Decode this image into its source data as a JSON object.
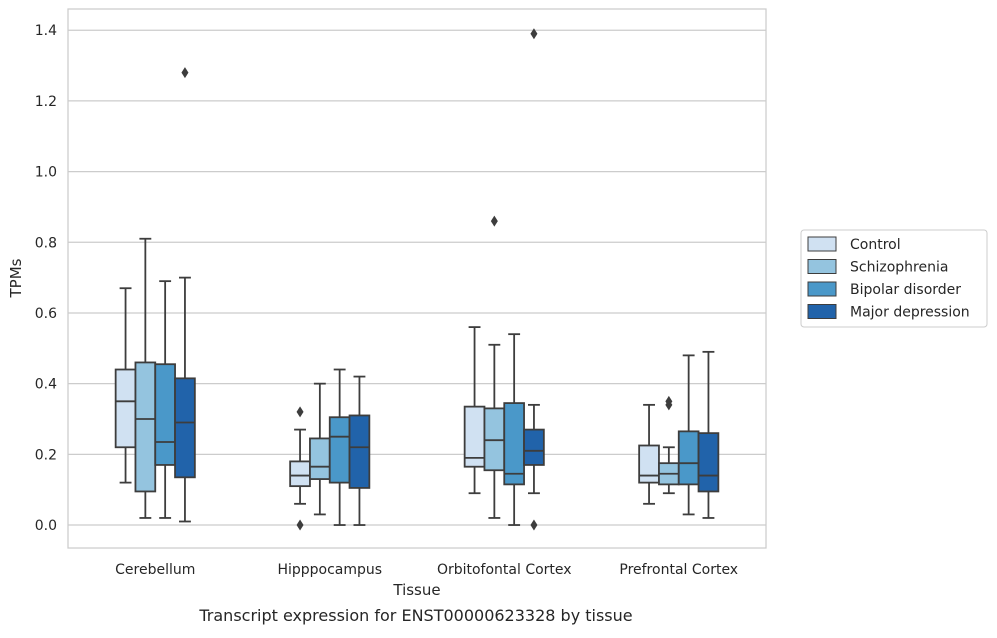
{
  "caption": "Transcript expression for ENST00000623328 by tissue",
  "chart_data": {
    "type": "box",
    "title": "",
    "xlabel": "Tissue",
    "ylabel": "TPMs",
    "ylim": [
      -0.065,
      1.46
    ],
    "yticks": [
      0.0,
      0.2,
      0.4,
      0.6,
      0.8,
      1.0,
      1.2,
      1.4
    ],
    "ytick_labels": [
      "0.0",
      "0.2",
      "0.4",
      "0.6",
      "0.8",
      "1.0",
      "1.2",
      "1.4"
    ],
    "grid": "horizontal",
    "legend_position": "center-right outside",
    "categories": [
      "Cerebellum",
      "Hipppocampus",
      "Orbitofontal Cortex",
      "Prefrontal Cortex"
    ],
    "series": [
      {
        "name": "Control",
        "color": "#d0e1f2",
        "boxes": [
          {
            "whislo": 0.12,
            "q1": 0.22,
            "med": 0.35,
            "q3": 0.44,
            "whishi": 0.67,
            "fliers": []
          },
          {
            "whislo": 0.06,
            "q1": 0.11,
            "med": 0.14,
            "q3": 0.18,
            "whishi": 0.27,
            "fliers": [
              0.0,
              0.32
            ]
          },
          {
            "whislo": 0.09,
            "q1": 0.165,
            "med": 0.19,
            "q3": 0.335,
            "whishi": 0.56,
            "fliers": []
          },
          {
            "whislo": 0.06,
            "q1": 0.12,
            "med": 0.14,
            "q3": 0.225,
            "whishi": 0.34,
            "fliers": []
          }
        ]
      },
      {
        "name": "Schizophrenia",
        "color": "#94c4df",
        "boxes": [
          {
            "whislo": 0.02,
            "q1": 0.095,
            "med": 0.3,
            "q3": 0.46,
            "whishi": 0.81,
            "fliers": []
          },
          {
            "whislo": 0.03,
            "q1": 0.13,
            "med": 0.165,
            "q3": 0.245,
            "whishi": 0.4,
            "fliers": []
          },
          {
            "whislo": 0.02,
            "q1": 0.155,
            "med": 0.24,
            "q3": 0.33,
            "whishi": 0.51,
            "fliers": [
              0.86
            ]
          },
          {
            "whislo": 0.09,
            "q1": 0.115,
            "med": 0.145,
            "q3": 0.175,
            "whishi": 0.22,
            "fliers": [
              0.34,
              0.35
            ]
          }
        ]
      },
      {
        "name": "Bipolar disorder",
        "color": "#4a98c9",
        "boxes": [
          {
            "whislo": 0.02,
            "q1": 0.17,
            "med": 0.235,
            "q3": 0.455,
            "whishi": 0.69,
            "fliers": []
          },
          {
            "whislo": 0.0,
            "q1": 0.12,
            "med": 0.25,
            "q3": 0.305,
            "whishi": 0.44,
            "fliers": []
          },
          {
            "whislo": 0.0,
            "q1": 0.115,
            "med": 0.145,
            "q3": 0.345,
            "whishi": 0.54,
            "fliers": []
          },
          {
            "whislo": 0.03,
            "q1": 0.115,
            "med": 0.175,
            "q3": 0.265,
            "whishi": 0.48,
            "fliers": []
          }
        ]
      },
      {
        "name": "Major depression",
        "color": "#2163aa",
        "boxes": [
          {
            "whislo": 0.01,
            "q1": 0.135,
            "med": 0.29,
            "q3": 0.415,
            "whishi": 0.7,
            "fliers": [
              1.28
            ]
          },
          {
            "whislo": 0.0,
            "q1": 0.105,
            "med": 0.22,
            "q3": 0.31,
            "whishi": 0.42,
            "fliers": []
          },
          {
            "whislo": 0.09,
            "q1": 0.17,
            "med": 0.21,
            "q3": 0.27,
            "whishi": 0.34,
            "fliers": [
              0.0,
              1.39
            ]
          },
          {
            "whislo": 0.02,
            "q1": 0.095,
            "med": 0.14,
            "q3": 0.26,
            "whishi": 0.49,
            "fliers": []
          }
        ]
      }
    ]
  }
}
